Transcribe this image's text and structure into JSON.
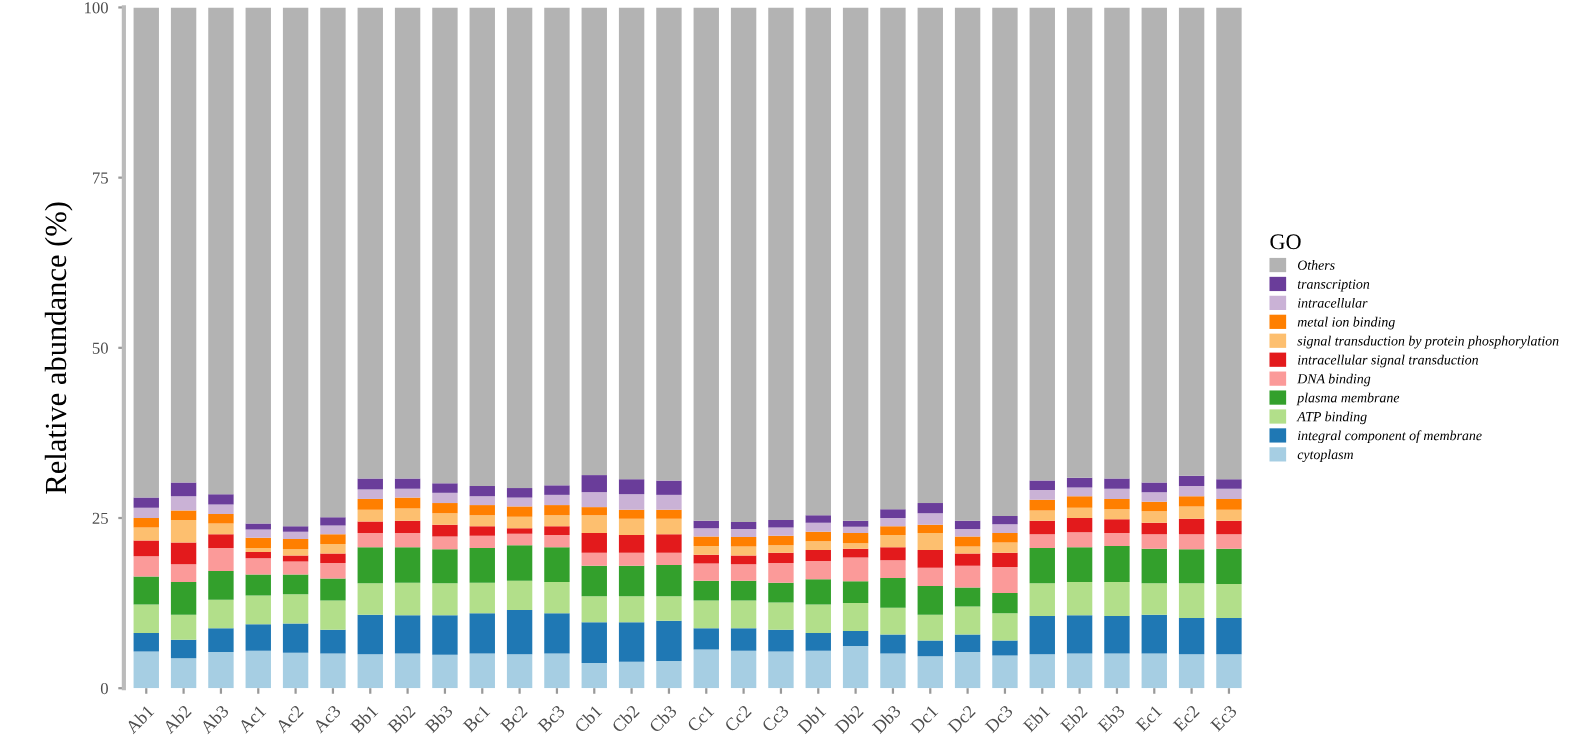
{
  "chart_data": {
    "type": "bar",
    "stacked": true,
    "ylabel": "Relative abundance (%)",
    "legend_title": "GO",
    "legend": "right",
    "grid": false,
    "categories": [
      "Ab1",
      "Ab2",
      "Ab3",
      "Ac1",
      "Ac2",
      "Ac3",
      "Bb1",
      "Bb2",
      "Bb3",
      "Bc1",
      "Bc2",
      "Bc3",
      "Cb1",
      "Cb2",
      "Cb3",
      "Cc1",
      "Cc2",
      "Cc3",
      "Db1",
      "Db2",
      "Db3",
      "Dc1",
      "Dc2",
      "Dc3",
      "Eb1",
      "Eb2",
      "Eb3",
      "Ec1",
      "Ec2",
      "Ec3"
    ],
    "ylim": [
      0,
      100
    ],
    "yticks": [
      0,
      25,
      50,
      75,
      100
    ],
    "series": [
      {
        "name": "cytoplasm",
        "color": "#a6cee3",
        "values": [
          5.4,
          4.4,
          5.3,
          5.5,
          5.2,
          5.1,
          5.0,
          5.1,
          4.9,
          5.1,
          5.0,
          5.1,
          3.7,
          3.9,
          4.0,
          5.7,
          5.5,
          5.4,
          5.5,
          6.2,
          5.1,
          4.7,
          5.3,
          4.8,
          5.0,
          5.1,
          5.1,
          5.1,
          5.0,
          5.0
        ]
      },
      {
        "name": "integral component of membrane",
        "color": "#1f78b4",
        "values": [
          2.7,
          2.7,
          3.5,
          3.9,
          4.3,
          3.5,
          5.8,
          5.6,
          5.8,
          5.9,
          6.5,
          5.9,
          6.0,
          5.8,
          5.9,
          3.1,
          3.3,
          3.2,
          2.6,
          2.2,
          2.8,
          2.3,
          2.6,
          2.2,
          5.6,
          5.6,
          5.5,
          5.7,
          5.3,
          5.3
        ]
      },
      {
        "name": "ATP binding",
        "color": "#b2df8a",
        "values": [
          4.2,
          3.7,
          4.2,
          4.2,
          4.3,
          4.3,
          4.6,
          4.8,
          4.7,
          4.5,
          4.3,
          4.6,
          3.8,
          3.8,
          3.6,
          4.1,
          4.1,
          4.0,
          4.2,
          4.1,
          3.9,
          3.8,
          4.1,
          4.0,
          4.8,
          4.9,
          5.0,
          4.6,
          5.1,
          5.0
        ]
      },
      {
        "name": "plasma membrane",
        "color": "#33a02c",
        "values": [
          4.1,
          4.8,
          4.2,
          3.1,
          2.9,
          3.2,
          5.3,
          5.2,
          5.0,
          5.1,
          5.2,
          5.1,
          4.5,
          4.5,
          4.6,
          2.9,
          2.9,
          2.9,
          3.7,
          3.2,
          4.4,
          4.2,
          2.8,
          3.0,
          5.2,
          5.1,
          5.3,
          5.1,
          5.0,
          5.2
        ]
      },
      {
        "name": "DNA binding",
        "color": "#fb9a99",
        "values": [
          3.0,
          2.6,
          3.4,
          2.4,
          1.9,
          2.3,
          2.1,
          2.1,
          1.9,
          1.8,
          1.7,
          1.8,
          1.9,
          1.9,
          1.8,
          2.5,
          2.4,
          2.9,
          2.7,
          3.5,
          2.6,
          2.7,
          3.2,
          3.8,
          2.0,
          2.2,
          1.9,
          2.1,
          2.2,
          2.1
        ]
      },
      {
        "name": "intracellular signal transduction",
        "color": "#e31a1c",
        "values": [
          2.3,
          3.2,
          2.0,
          0.9,
          0.9,
          1.4,
          1.7,
          1.8,
          1.7,
          1.4,
          0.8,
          1.3,
          2.9,
          2.6,
          2.7,
          1.3,
          1.3,
          1.5,
          1.6,
          1.3,
          1.9,
          2.6,
          1.8,
          2.1,
          2.0,
          2.1,
          2.0,
          1.7,
          2.3,
          2.0
        ]
      },
      {
        "name": "signal transduction by protein phosphorylation",
        "color": "#fdbf6f",
        "values": [
          1.9,
          3.3,
          1.6,
          0.6,
          0.9,
          1.4,
          1.7,
          1.8,
          1.7,
          1.6,
          1.7,
          1.6,
          2.6,
          2.4,
          2.3,
          1.3,
          1.3,
          1.1,
          1.3,
          0.8,
          1.8,
          2.5,
          1.0,
          1.5,
          1.5,
          1.5,
          1.5,
          1.7,
          1.8,
          1.6
        ]
      },
      {
        "name": "metal ion binding",
        "color": "#ff7f00",
        "values": [
          1.4,
          1.4,
          1.4,
          1.5,
          1.5,
          1.4,
          1.6,
          1.6,
          1.5,
          1.5,
          1.5,
          1.5,
          1.2,
          1.3,
          1.3,
          1.4,
          1.4,
          1.4,
          1.4,
          1.5,
          1.3,
          1.2,
          1.5,
          1.4,
          1.6,
          1.7,
          1.5,
          1.4,
          1.5,
          1.6
        ]
      },
      {
        "name": "intracellular",
        "color": "#cab2d6",
        "values": [
          1.5,
          2.1,
          1.4,
          1.2,
          1.1,
          1.3,
          1.4,
          1.3,
          1.5,
          1.3,
          1.3,
          1.5,
          2.2,
          2.3,
          2.2,
          1.2,
          1.2,
          1.2,
          1.3,
          0.9,
          1.2,
          1.7,
          1.1,
          1.3,
          1.4,
          1.3,
          1.5,
          1.4,
          1.5,
          1.5
        ]
      },
      {
        "name": "transcription",
        "color": "#6a3d9a",
        "values": [
          1.5,
          2.0,
          1.5,
          0.9,
          0.8,
          1.2,
          1.6,
          1.5,
          1.4,
          1.5,
          1.4,
          1.4,
          2.5,
          2.2,
          2.1,
          1.1,
          1.0,
          1.1,
          1.1,
          0.9,
          1.3,
          1.5,
          1.2,
          1.2,
          1.4,
          1.4,
          1.5,
          1.4,
          1.5,
          1.4
        ]
      },
      {
        "name": "Others",
        "color": "#b3b3b3",
        "values": [
          72.0,
          69.8,
          71.5,
          75.8,
          76.2,
          74.9,
          69.2,
          69.2,
          69.9,
          70.3,
          70.6,
          70.2,
          68.7,
          69.3,
          69.5,
          75.4,
          75.6,
          75.3,
          74.6,
          75.4,
          73.7,
          72.8,
          75.4,
          74.7,
          69.5,
          69.1,
          69.2,
          69.8,
          68.8,
          69.3
        ]
      }
    ]
  }
}
